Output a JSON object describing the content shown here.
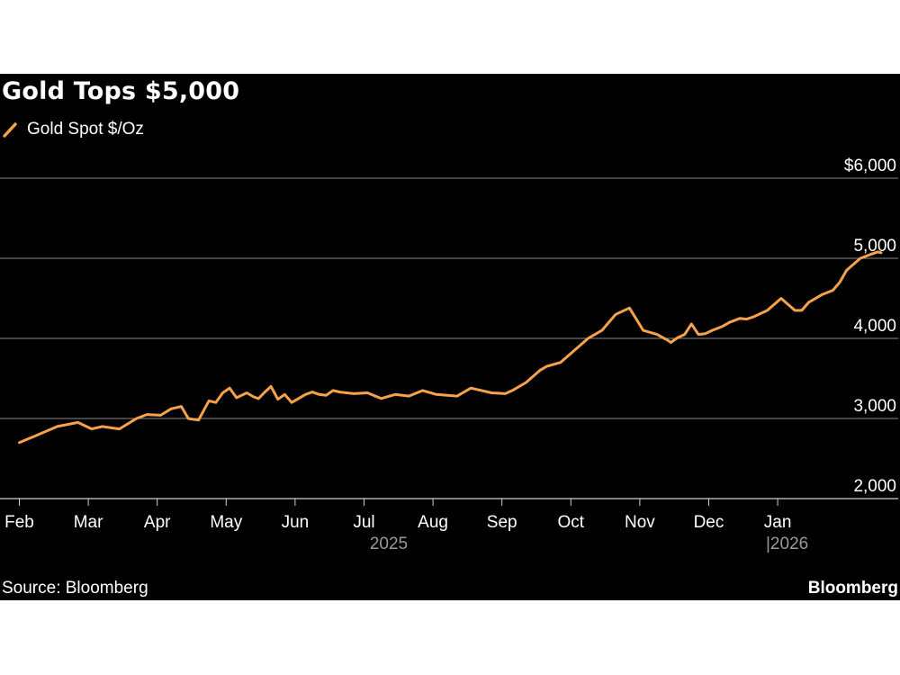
{
  "header": {
    "title": "Gold Tops $5,000",
    "legend_label": "Gold Spot $/Oz"
  },
  "footer": {
    "source": "Source: Bloomberg",
    "brand": "Bloomberg"
  },
  "colors": {
    "background": "#000000",
    "line": "#f5a24b",
    "grid": "#8a8a8a",
    "text": "#ffffff",
    "muted": "#9a9a9a"
  },
  "chart_data": {
    "type": "line",
    "title": "Gold Tops $5,000",
    "xlabel": "",
    "ylabel": "",
    "ylim": [
      2000,
      6000
    ],
    "y_ticks": [
      2000,
      3000,
      4000,
      5000,
      6000
    ],
    "y_tick_labels": [
      "2,000",
      "3,000",
      "4,000",
      "5,000",
      "$6,000"
    ],
    "x_ticks": [
      "Feb",
      "Mar",
      "Apr",
      "May",
      "Jun",
      "Jul",
      "Aug",
      "Sep",
      "Oct",
      "Nov",
      "Dec",
      "Jan"
    ],
    "year_labels": [
      "2025",
      "|2026"
    ],
    "x_range_months": [
      0.0,
      12.65
    ],
    "grid": true,
    "legend": "top-left",
    "series": [
      {
        "name": "Gold Spot $/Oz",
        "x": [
          0.15,
          0.4,
          0.7,
          1.0,
          1.2,
          1.35,
          1.6,
          1.85,
          2.0,
          2.2,
          2.35,
          2.5,
          2.6,
          2.75,
          2.9,
          3.0,
          3.1,
          3.2,
          3.3,
          3.45,
          3.55,
          3.62,
          3.7,
          3.8,
          3.9,
          4.0,
          4.1,
          4.2,
          4.3,
          4.4,
          4.5,
          4.6,
          4.7,
          4.8,
          5.0,
          5.2,
          5.4,
          5.6,
          5.8,
          6.0,
          6.2,
          6.5,
          6.7,
          7.0,
          7.2,
          7.3,
          7.5,
          7.7,
          7.8,
          8.0,
          8.2,
          8.4,
          8.6,
          8.8,
          9.0,
          9.2,
          9.4,
          9.55,
          9.6,
          9.7,
          9.8,
          9.9,
          10.0,
          10.1,
          10.2,
          10.35,
          10.45,
          10.6,
          10.7,
          10.8,
          11.0,
          11.2,
          11.4,
          11.5,
          11.6,
          11.8,
          11.95,
          12.05,
          12.15,
          12.35,
          12.5,
          12.6,
          12.65
        ],
        "y": [
          2700,
          2790,
          2900,
          2950,
          2870,
          2900,
          2870,
          3000,
          3050,
          3040,
          3120,
          3150,
          3000,
          2980,
          3220,
          3200,
          3320,
          3380,
          3260,
          3320,
          3270,
          3250,
          3320,
          3400,
          3240,
          3300,
          3200,
          3250,
          3300,
          3330,
          3300,
          3290,
          3350,
          3330,
          3310,
          3320,
          3250,
          3300,
          3280,
          3350,
          3300,
          3280,
          3380,
          3320,
          3310,
          3350,
          3450,
          3600,
          3650,
          3700,
          3850,
          4000,
          4100,
          4300,
          4380,
          4100,
          4050,
          3980,
          3950,
          4010,
          4050,
          4180,
          4050,
          4060,
          4100,
          4150,
          4200,
          4250,
          4240,
          4270,
          4350,
          4500,
          4350,
          4350,
          4450,
          4550,
          4600,
          4700,
          4850,
          5000,
          5050,
          5080,
          5070
        ]
      }
    ]
  }
}
